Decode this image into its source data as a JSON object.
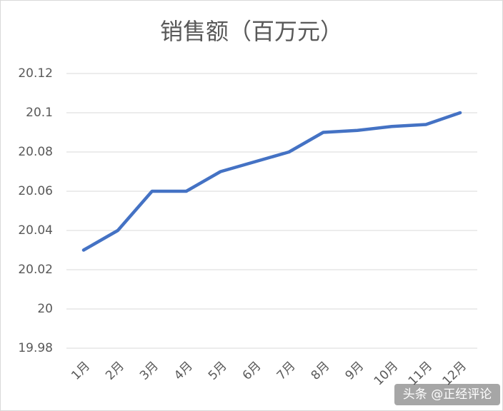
{
  "chart_data": {
    "type": "line",
    "title": "销售额（百万元）",
    "categories": [
      "1月",
      "2月",
      "3月",
      "4月",
      "5月",
      "6月",
      "7月",
      "8月",
      "9月",
      "10月",
      "11月",
      "12月"
    ],
    "values": [
      20.03,
      20.04,
      20.06,
      20.06,
      20.07,
      20.075,
      20.08,
      20.09,
      20.091,
      20.093,
      20.094,
      20.1
    ],
    "color": "#4472c4",
    "ylim": [
      19.98,
      20.12
    ],
    "yticks": [
      19.98,
      20,
      20.02,
      20.04,
      20.06,
      20.08,
      20.1,
      20.12
    ],
    "grid": true
  },
  "watermark": "头条 @正经评论"
}
